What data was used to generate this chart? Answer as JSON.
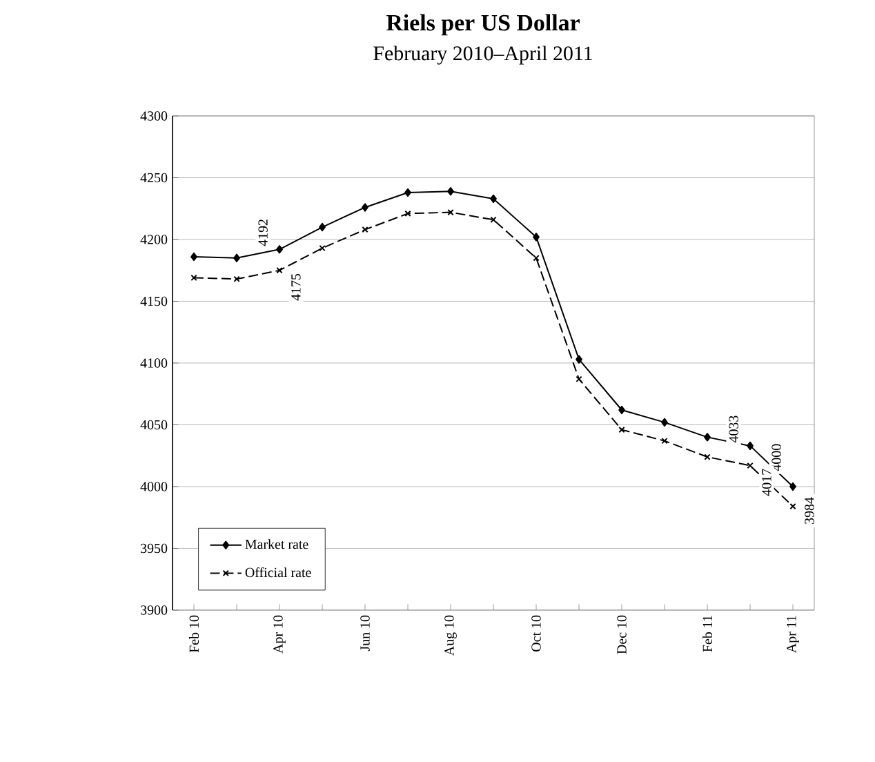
{
  "chart_data": {
    "type": "line",
    "title": "Riels per US Dollar",
    "subtitle": "February 2010–April 2011",
    "categories": [
      "Feb 10",
      null,
      "Apr 10",
      null,
      "Jun 10",
      null,
      "Aug 10",
      null,
      "Oct 10",
      null,
      "Dec 10",
      null,
      "Feb 11",
      null,
      "Apr 11"
    ],
    "series": [
      {
        "name": "Market rate",
        "color": "#000000",
        "marker": "diamond",
        "line_style": "solid",
        "values": [
          4186,
          4185,
          4192,
          4210,
          4226,
          4238,
          4239,
          4233,
          4202,
          4103,
          4062,
          4052,
          4040,
          4033,
          4000
        ],
        "value_labels": [
          null,
          null,
          "4192",
          null,
          null,
          null,
          null,
          null,
          null,
          null,
          null,
          null,
          null,
          "4033",
          "4000"
        ]
      },
      {
        "name": "Official rate",
        "color": "#000000",
        "marker": "cross",
        "line_style": "dashed",
        "values": [
          4169,
          4168,
          4175,
          4193,
          4208,
          4221,
          4222,
          4216,
          4185,
          4087,
          4046,
          4037,
          4024,
          4017,
          3984
        ],
        "value_labels": [
          null,
          null,
          "4175",
          null,
          null,
          null,
          null,
          null,
          null,
          null,
          null,
          null,
          null,
          "4017",
          "3984"
        ]
      }
    ],
    "ylim": [
      3900,
      4300
    ],
    "yticks": [
      3900,
      3950,
      4000,
      4050,
      4100,
      4150,
      4200,
      4250,
      4300
    ],
    "grid": "y",
    "legend": "bottom left"
  }
}
